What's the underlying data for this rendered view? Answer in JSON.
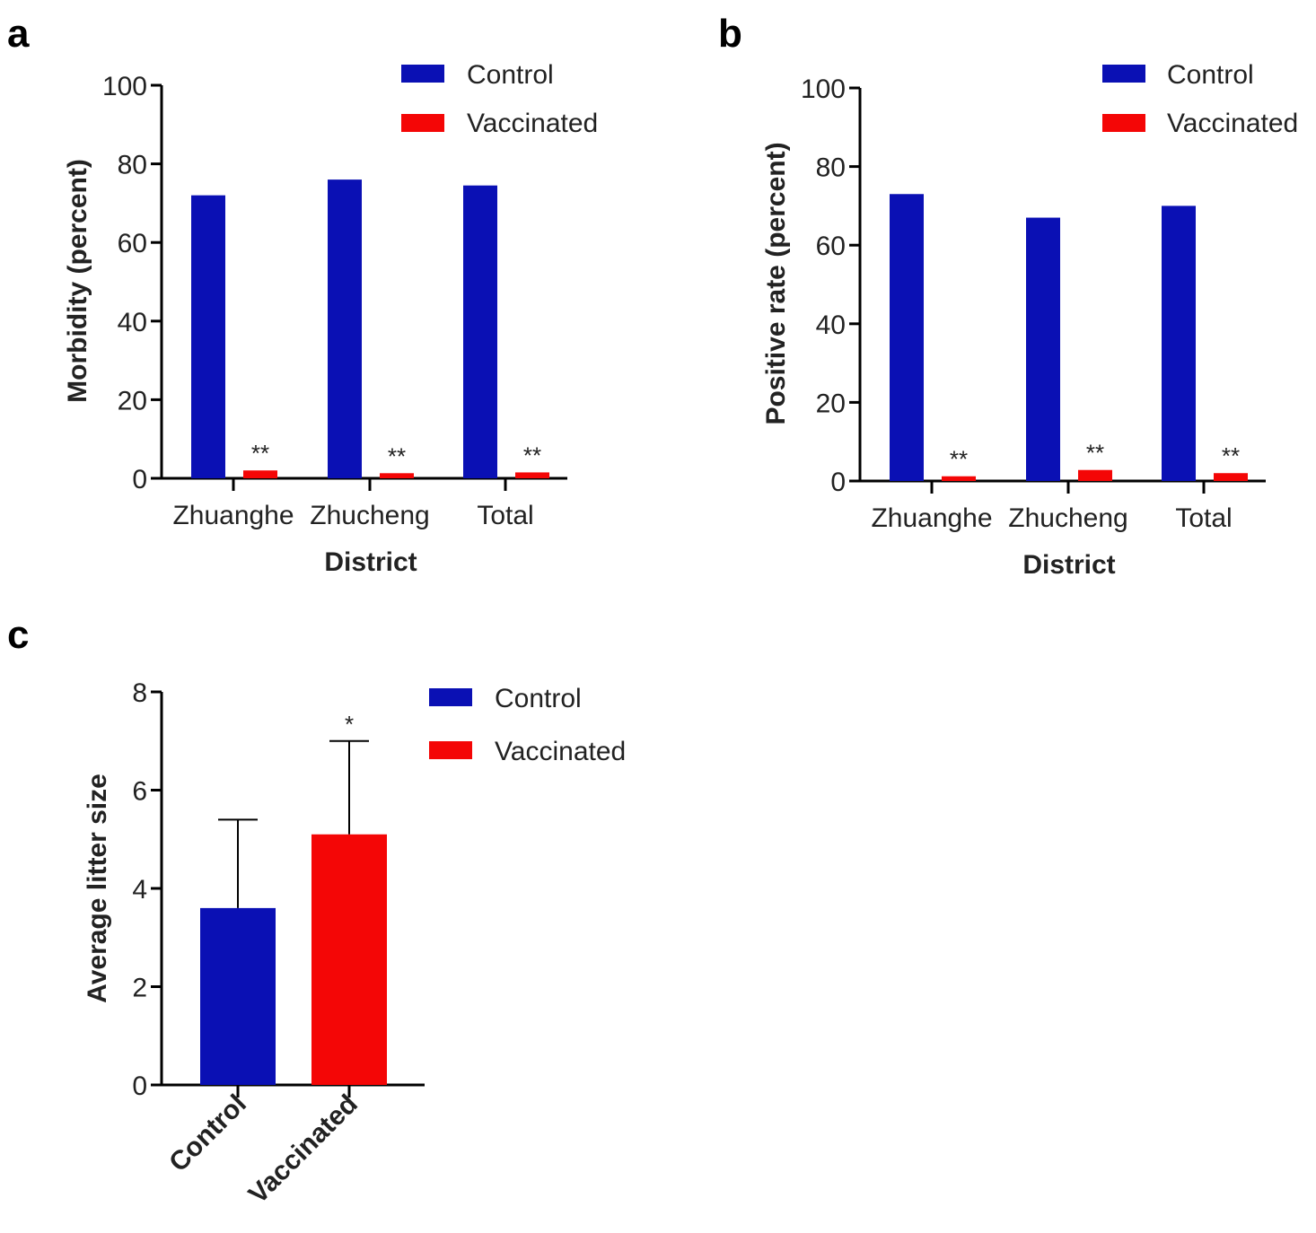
{
  "colors": {
    "control": "#0a10b4",
    "vaccinated": "#f40606"
  },
  "chart_data": [
    {
      "panel": "a",
      "type": "bar",
      "categories": [
        "Zhuanghe",
        "Zhucheng",
        "Total"
      ],
      "series": [
        {
          "name": "Control",
          "values": [
            72,
            76,
            74.5
          ]
        },
        {
          "name": "Vaccinated",
          "values": [
            2,
            1.3,
            1.5
          ]
        }
      ],
      "significance": [
        "**",
        "**",
        "**"
      ],
      "xlabel": "District",
      "ylabel": "Morbidity (percent)",
      "ylim": [
        0,
        100
      ],
      "yticks": [
        "0",
        "20",
        "40",
        "60",
        "80",
        "100"
      ],
      "legend": "top-right"
    },
    {
      "panel": "b",
      "type": "bar",
      "categories": [
        "Zhuanghe",
        "Zhucheng",
        "Total"
      ],
      "series": [
        {
          "name": "Control",
          "values": [
            73,
            67,
            70
          ]
        },
        {
          "name": "Vaccinated",
          "values": [
            1.2,
            2.8,
            2
          ]
        }
      ],
      "significance": [
        "**",
        "**",
        "**"
      ],
      "xlabel": "District",
      "ylabel": "Positive rate (percent)",
      "ylim": [
        0,
        100
      ],
      "yticks": [
        "0",
        "20",
        "40",
        "60",
        "80",
        "100"
      ],
      "legend": "top-right"
    },
    {
      "panel": "c",
      "type": "bar",
      "categories": [
        "Control",
        "Vaccinated"
      ],
      "values": [
        3.6,
        5.1
      ],
      "error": [
        1.8,
        1.9
      ],
      "significance": [
        "",
        "*"
      ],
      "legend_entries": [
        "Control",
        "Vaccinated"
      ],
      "xlabel": "",
      "ylabel": "Average litter size",
      "ylim": [
        0,
        8
      ],
      "yticks": [
        "0",
        "2",
        "4",
        "6",
        "8"
      ],
      "legend": "top-right"
    }
  ]
}
